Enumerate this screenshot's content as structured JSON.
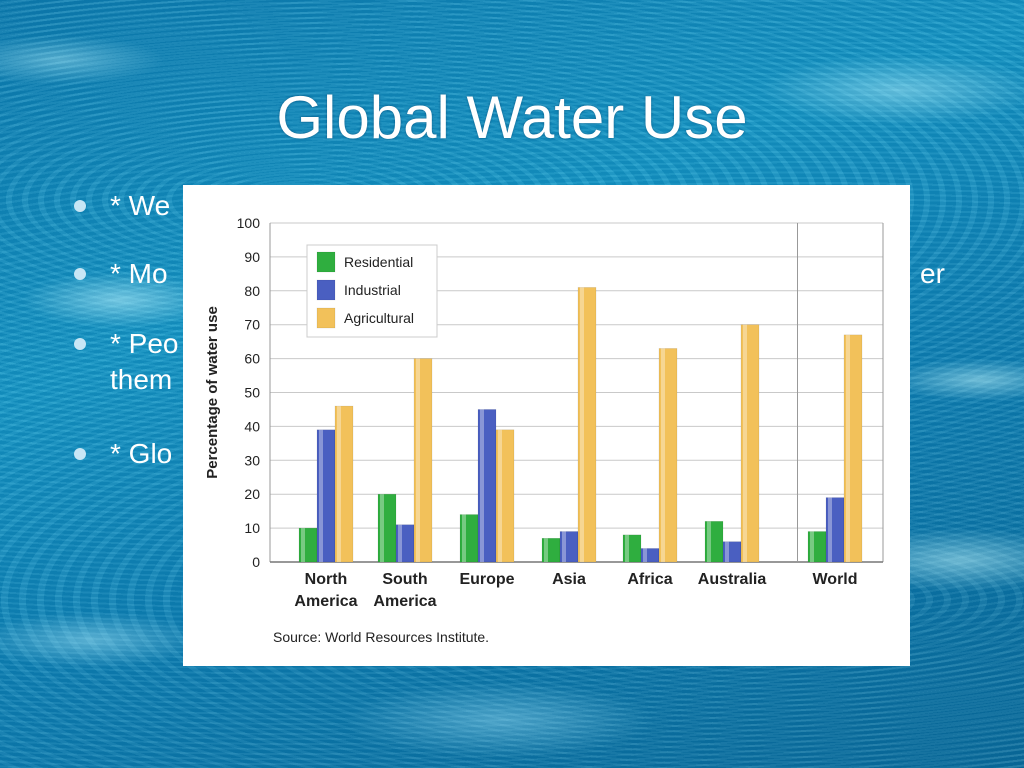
{
  "slide": {
    "title": "Global Water Use",
    "bullets": [
      {
        "text": "* We",
        "extra": ""
      },
      {
        "text": "* Mo",
        "extra": "er"
      },
      {
        "text": "* Peo",
        "extra": "them"
      },
      {
        "text": "* Glo",
        "extra": ""
      }
    ]
  },
  "chart_data": {
    "type": "bar",
    "title": "",
    "xlabel": "",
    "ylabel": "Percentage of water use",
    "ylim": [
      0,
      100
    ],
    "yticks": [
      0,
      10,
      20,
      30,
      40,
      50,
      60,
      70,
      80,
      90,
      100
    ],
    "categories": [
      "North America",
      "South America",
      "Europe",
      "Asia",
      "Africa",
      "Australia",
      "World"
    ],
    "category_lines": [
      [
        "North",
        "America"
      ],
      [
        "South",
        "America"
      ],
      [
        "Europe"
      ],
      [
        "Asia"
      ],
      [
        "Africa"
      ],
      [
        "Australia"
      ],
      [
        "World"
      ]
    ],
    "series": [
      {
        "name": "Residential",
        "color": "#2fae3f",
        "values": [
          10,
          20,
          14,
          7,
          8,
          12,
          9
        ]
      },
      {
        "name": "Industrial",
        "color": "#4a5fc1",
        "values": [
          39,
          11,
          45,
          9,
          4,
          6,
          19
        ]
      },
      {
        "name": "Agricultural",
        "color": "#f2c15a",
        "values": [
          46,
          60,
          39,
          81,
          63,
          70,
          67
        ]
      }
    ],
    "legend_position": "top-left",
    "grid": true,
    "source": "Source: World Resources Institute."
  }
}
